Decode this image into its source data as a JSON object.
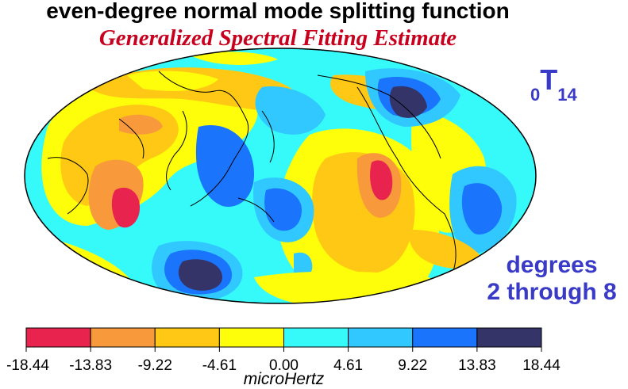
{
  "title": "even-degree normal mode splitting function",
  "subtitle": "Generalized Spectral Fitting Estimate",
  "mode": {
    "overtone": "0",
    "type": "T",
    "degree": "14"
  },
  "degrees_label": {
    "line1": "degrees",
    "line2": "2 through 8"
  },
  "colorbar": {
    "unit": "microHertz",
    "ticks": [
      "-18.44",
      "-13.83",
      "-9.22",
      "-4.61",
      "0.00",
      "4.61",
      "9.22",
      "13.83",
      "18.44"
    ],
    "colors": [
      "#e8244e",
      "#f89a3c",
      "#fec814",
      "#fefe0a",
      "#36fafa",
      "#30c8fe",
      "#1a74fc",
      "#343468"
    ]
  },
  "colors": {
    "title": "#000000",
    "subtitle": "#c8001e",
    "accent_blue": "#3a3ac8"
  }
}
